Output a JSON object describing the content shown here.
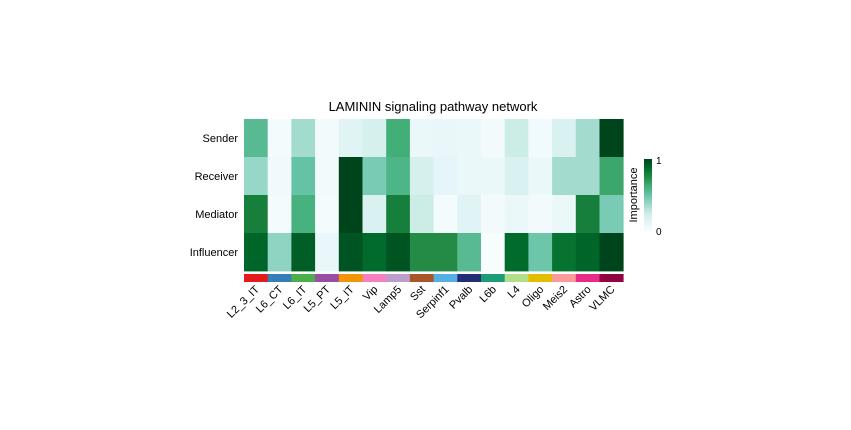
{
  "chart_data": {
    "type": "heatmap",
    "title": "LAMININ signaling pathway network",
    "rows": [
      "Sender",
      "Receiver",
      "Mediator",
      "Influencer"
    ],
    "columns": [
      "L2_3_IT",
      "L6_CT",
      "L6_IT",
      "L5_PT",
      "L5_IT",
      "Vip",
      "Lamp5",
      "Sst",
      "Serpinf1",
      "Pvalb",
      "L6b",
      "L4",
      "Oligo",
      "Meis2",
      "Astro",
      "VLMC"
    ],
    "column_colors": [
      "#E41A1C",
      "#377EB8",
      "#4DAF4A",
      "#984EA3",
      "#F29403",
      "#F781BF",
      "#BC9DCC",
      "#A65628",
      "#54B0E4",
      "#222F75",
      "#1B9E77",
      "#B2DF8A",
      "#E3BE00",
      "#FB9A99",
      "#E7298A",
      "#910241"
    ],
    "values": [
      [
        0.55,
        0.02,
        0.35,
        0.03,
        0.15,
        0.2,
        0.62,
        0.08,
        0.1,
        0.08,
        0.03,
        0.25,
        0.04,
        0.18,
        0.35,
        1.0
      ],
      [
        0.38,
        0.05,
        0.5,
        0.03,
        1.0,
        0.45,
        0.58,
        0.2,
        0.12,
        0.08,
        0.08,
        0.18,
        0.08,
        0.35,
        0.35,
        0.65
      ],
      [
        0.8,
        0.02,
        0.6,
        0.02,
        1.0,
        0.18,
        0.8,
        0.25,
        0.02,
        0.15,
        0.03,
        0.08,
        0.03,
        0.08,
        0.8,
        0.45
      ],
      [
        0.9,
        0.4,
        0.92,
        0.1,
        0.95,
        0.88,
        0.95,
        0.75,
        0.75,
        0.55,
        0.0,
        0.88,
        0.48,
        0.85,
        0.9,
        1.0
      ]
    ],
    "colorbar": {
      "label": "Importance",
      "min": 0,
      "max": 1,
      "ticks": [
        "0",
        "1"
      ]
    },
    "colormap": [
      "#F7FCFD",
      "#E5F5F9",
      "#CCECE6",
      "#99D8C9",
      "#66C2A4",
      "#41AE76",
      "#238B45",
      "#006D2C",
      "#00441B"
    ]
  }
}
